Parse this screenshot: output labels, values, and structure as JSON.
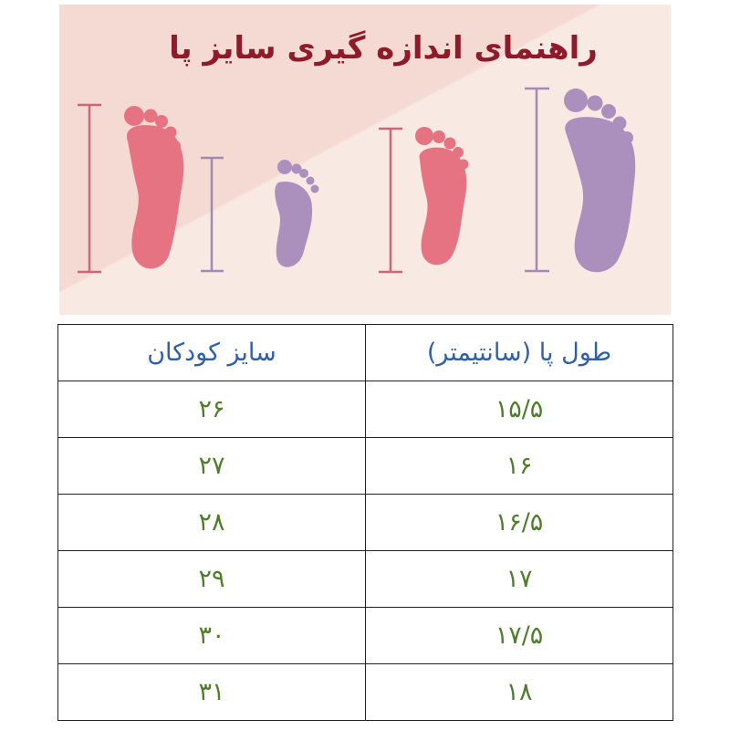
{
  "banner": {
    "title": "راهنمای اندازه گیری سایز پا",
    "colors": {
      "pink_foot": "#e67382",
      "purple_foot": "#ab8fbd",
      "title": "#8e1a2a",
      "background": "#f5d9d3"
    }
  },
  "table": {
    "headers": [
      "طول پا (سانتیمتر)",
      "سایز کودکان"
    ],
    "rows": [
      [
        "۱۵/۵",
        "۲۶"
      ],
      [
        "۱۶",
        "۲۷"
      ],
      [
        "۱۶/۵",
        "۲۸"
      ],
      [
        "۱۷",
        "۲۹"
      ],
      [
        "۱۷/۵",
        "۳۰"
      ],
      [
        "۱۸",
        "۳۱"
      ]
    ]
  }
}
